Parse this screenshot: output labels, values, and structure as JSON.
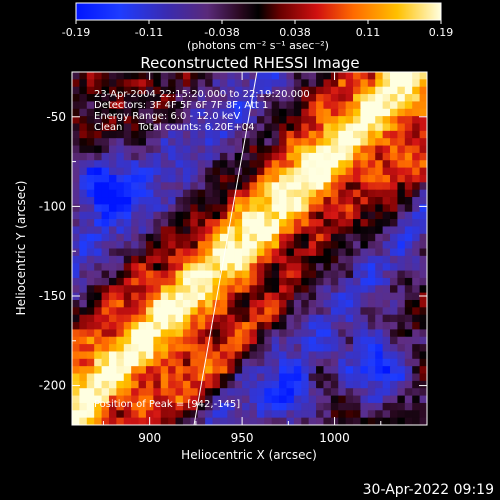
{
  "chart_data": {
    "type": "heatmap",
    "title": "Reconstructed RHESSI Image",
    "xlabel": "Heliocentric X (arcsec)",
    "ylabel": "Heliocentric Y (arcsec)",
    "xlim": [
      858,
      1050
    ],
    "ylim": [
      -222,
      -25
    ],
    "x_ticks": [
      900,
      950,
      1000
    ],
    "y_ticks": [
      -50,
      -100,
      -150,
      -200
    ],
    "colorbar": {
      "range": [
        -0.19,
        0.19
      ],
      "ticks": [
        "-0.19",
        "-0.11",
        "-0.038",
        "0.038",
        "0.11",
        "0.19"
      ],
      "unit_label": "(photons cm⁻² s⁻¹ asec⁻²)"
    },
    "annotations": [
      "23-Apr-2004 22:15:20.000 to 22:19:20.000",
      "Detectors: 3F 4F 5F 6F 7F 8F, Att 1",
      "Energy Range: 6.0 - 12.0 keV",
      "Clean     Total counts: 6.20E+04"
    ],
    "peak_label": "Position of Peak = [942,-145]",
    "peak": [
      942,
      -145
    ],
    "limb_line": {
      "x": [
        924,
        958
      ],
      "y": [
        -222,
        -25
      ]
    }
  },
  "footer": {
    "date": "30-Apr-2022 09:19"
  }
}
